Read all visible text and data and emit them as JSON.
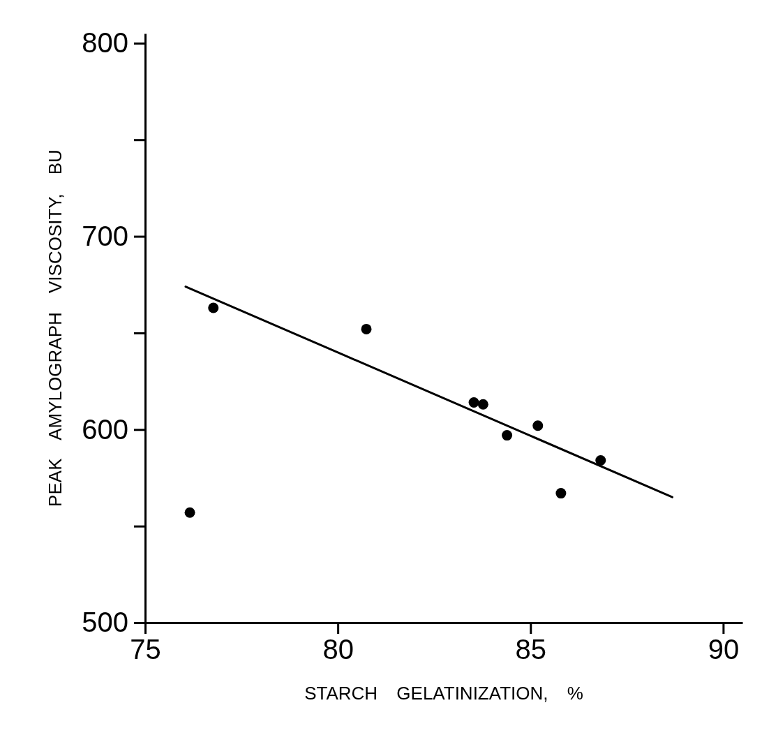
{
  "chart_data": {
    "type": "scatter",
    "xlabel": "STARCH GELATINIZATION, %",
    "ylabel": "PEAK AMYLOGRAPH VISCOSITY, BU",
    "xlim": [
      75,
      90.5
    ],
    "xticks": [
      75,
      80,
      85,
      90
    ],
    "ylim": [
      500,
      805
    ],
    "yticks": [
      500,
      {
        "value": 550,
        "label": null
      },
      600,
      {
        "value": 650,
        "label": null
      },
      700,
      {
        "value": 750,
        "label": null
      },
      800
    ],
    "grid": false,
    "marker": "circle",
    "series": [
      {
        "type": "scatter",
        "color": "#000000",
        "x": [
          76.16,
          76.77,
          80.74,
          83.53,
          83.77,
          84.39,
          85.19,
          85.79,
          86.82
        ],
        "values": [
          557,
          663,
          652,
          614,
          613,
          597,
          602,
          567,
          584
        ]
      },
      {
        "type": "line",
        "color": "#000000",
        "marker": "none",
        "line_style": "solid",
        "x": [
          76.05,
          88.68
        ],
        "values": [
          674,
          565
        ]
      }
    ]
  }
}
